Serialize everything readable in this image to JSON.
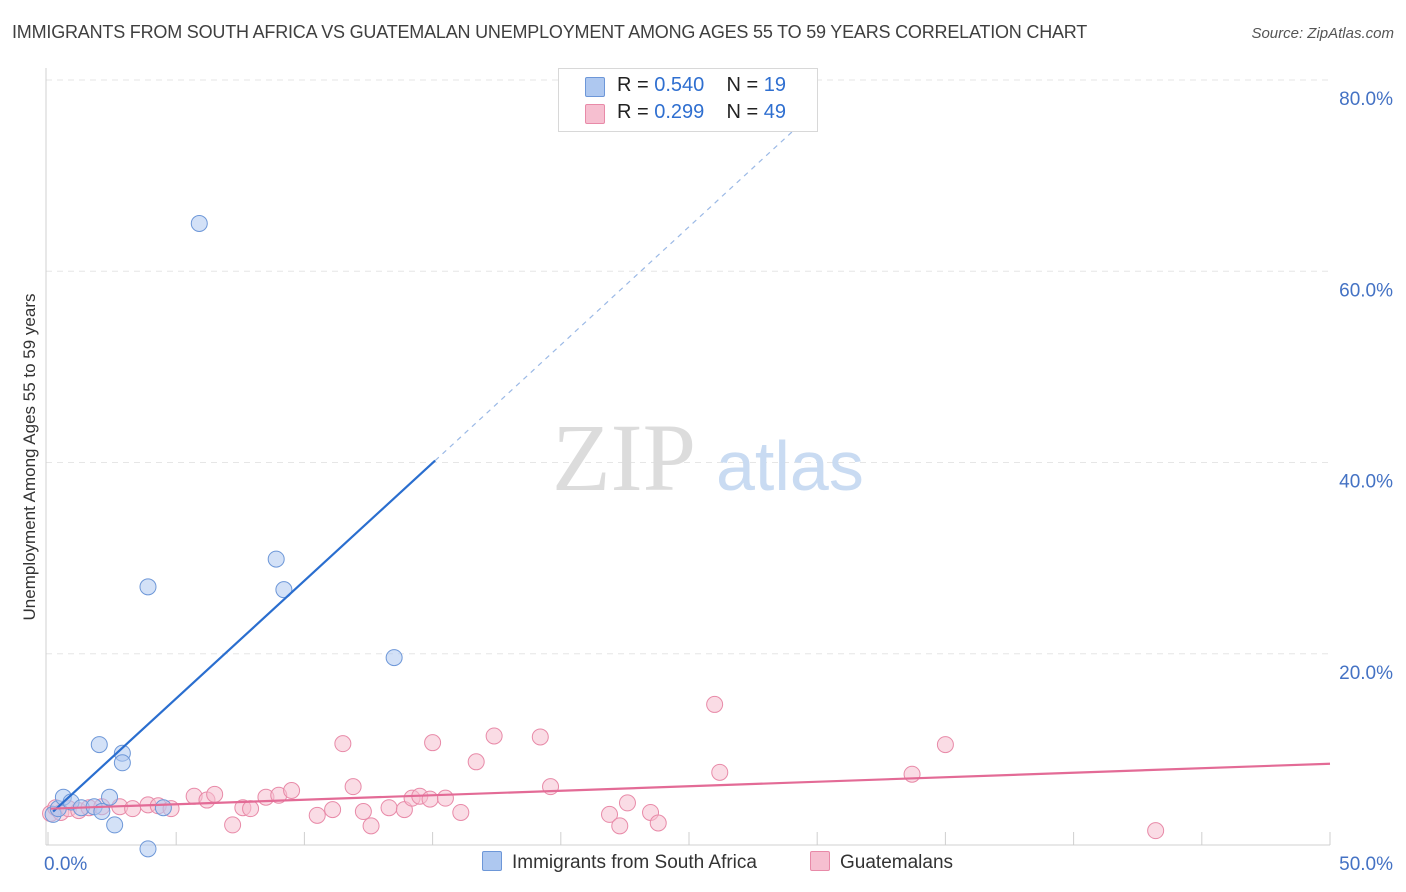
{
  "title": "IMMIGRANTS FROM SOUTH AFRICA VS GUATEMALAN UNEMPLOYMENT AMONG AGES 55 TO 59 YEARS CORRELATION CHART",
  "source": "Source: ZipAtlas.com",
  "watermark": {
    "zip": "ZIP",
    "atlas": "atlas"
  },
  "legend": {
    "series1": {
      "r_label": "R =",
      "r_value": "0.540",
      "n_label": "N =",
      "n_value": "19"
    },
    "series2": {
      "r_label": "R =",
      "r_value": "0.299",
      "n_label": "N =",
      "n_value": "49"
    }
  },
  "bottom_legend": {
    "series1": "Immigrants from South Africa",
    "series2": "Guatemalans"
  },
  "colors": {
    "blue_fill": "#aec8f0",
    "blue_stroke": "#6d97d8",
    "blue_line": "#2a6ecf",
    "pink_fill": "#f6bfd0",
    "pink_stroke": "#e88aa8",
    "pink_line": "#e36b96",
    "axis_text": "#4472c4",
    "grid": "#e6e6e6"
  },
  "chart_data": {
    "type": "scatter",
    "title": "IMMIGRANTS FROM SOUTH AFRICA VS GUATEMALAN UNEMPLOYMENT AMONG AGES 55 TO 59 YEARS CORRELATION CHART",
    "xlabel": "",
    "ylabel": "Unemployment Among Ages 55 to 59 years",
    "xlim": [
      0,
      50
    ],
    "ylim": [
      0,
      80
    ],
    "x_tick_labels": [
      "0.0%",
      "50.0%"
    ],
    "y_ticks": [
      20,
      40,
      60,
      80
    ],
    "y_tick_labels": [
      "20.0%",
      "40.0%",
      "60.0%",
      "80.0%"
    ],
    "grid": true,
    "series": [
      {
        "name": "Immigrants from South Africa",
        "points": [
          [
            0.2,
            3.2
          ],
          [
            0.4,
            3.8
          ],
          [
            0.6,
            5.0
          ],
          [
            0.9,
            4.5
          ],
          [
            1.3,
            3.9
          ],
          [
            1.8,
            4.0
          ],
          [
            2.1,
            3.5
          ],
          [
            2.0,
            10.5
          ],
          [
            2.4,
            5.0
          ],
          [
            2.6,
            2.1
          ],
          [
            2.9,
            9.6
          ],
          [
            2.9,
            8.6
          ],
          [
            3.9,
            27.0
          ],
          [
            3.9,
            -0.4
          ],
          [
            4.5,
            3.9
          ],
          [
            5.9,
            65.0
          ],
          [
            8.9,
            29.9
          ],
          [
            9.2,
            26.7
          ],
          [
            13.5,
            19.6
          ]
        ],
        "trend": {
          "x": [
            0.2,
            15.1
          ],
          "y": [
            3.5,
            40.2
          ]
        },
        "trend_extension": {
          "x": [
            15.1,
            30.0
          ],
          "y": [
            40.2,
            77.0
          ]
        }
      },
      {
        "name": "Guatemalans",
        "points": [
          [
            0.1,
            3.3
          ],
          [
            0.3,
            3.9
          ],
          [
            0.5,
            3.4
          ],
          [
            0.8,
            3.8
          ],
          [
            1.2,
            3.6
          ],
          [
            1.6,
            3.9
          ],
          [
            2.1,
            4.0
          ],
          [
            2.8,
            4.0
          ],
          [
            3.3,
            3.8
          ],
          [
            3.9,
            4.2
          ],
          [
            4.3,
            4.1
          ],
          [
            4.8,
            3.8
          ],
          [
            5.7,
            5.1
          ],
          [
            6.2,
            4.7
          ],
          [
            6.5,
            5.3
          ],
          [
            7.2,
            2.1
          ],
          [
            7.6,
            3.9
          ],
          [
            7.9,
            3.8
          ],
          [
            8.5,
            5.0
          ],
          [
            9.0,
            5.2
          ],
          [
            9.5,
            5.7
          ],
          [
            10.5,
            3.1
          ],
          [
            11.1,
            3.7
          ],
          [
            11.5,
            10.6
          ],
          [
            11.9,
            6.1
          ],
          [
            12.3,
            3.5
          ],
          [
            12.6,
            2.0
          ],
          [
            13.3,
            3.9
          ],
          [
            13.9,
            3.7
          ],
          [
            14.2,
            4.9
          ],
          [
            14.5,
            5.1
          ],
          [
            14.9,
            4.8
          ],
          [
            15.0,
            10.7
          ],
          [
            15.5,
            4.9
          ],
          [
            16.1,
            3.4
          ],
          [
            16.7,
            8.7
          ],
          [
            17.4,
            11.4
          ],
          [
            19.2,
            11.3
          ],
          [
            19.6,
            6.1
          ],
          [
            21.9,
            3.2
          ],
          [
            22.3,
            2.0
          ],
          [
            22.6,
            4.4
          ],
          [
            23.5,
            3.4
          ],
          [
            23.8,
            2.3
          ],
          [
            26.0,
            14.7
          ],
          [
            26.2,
            7.6
          ],
          [
            33.7,
            7.4
          ],
          [
            35.0,
            10.5
          ],
          [
            43.2,
            1.5
          ]
        ],
        "trend": {
          "x": [
            0.1,
            50.0
          ],
          "y": [
            3.8,
            8.5
          ]
        }
      }
    ]
  }
}
